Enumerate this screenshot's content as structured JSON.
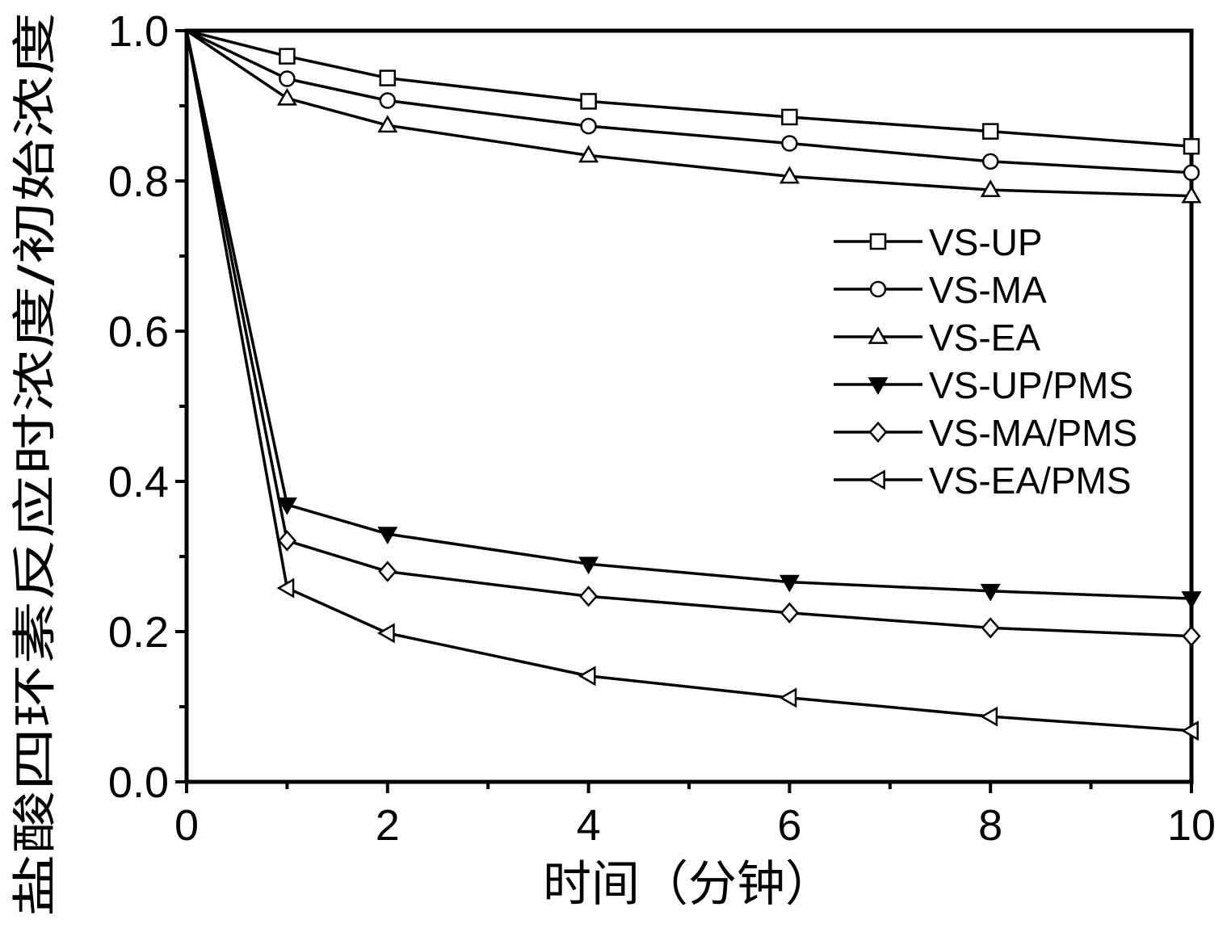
{
  "chart_data": {
    "type": "line",
    "title": "",
    "xlabel": "时间（分钟）",
    "ylabel": "盐酸四环素反应时浓度/初始浓度",
    "xlim": [
      0,
      10
    ],
    "ylim": [
      0.0,
      1.0
    ],
    "x_ticks": [
      0,
      2,
      4,
      6,
      8,
      10
    ],
    "x_tick_labels": [
      "0",
      "2",
      "4",
      "6",
      "8",
      "10"
    ],
    "y_ticks": [
      0.0,
      0.2,
      0.4,
      0.6,
      0.8,
      1.0
    ],
    "y_tick_labels": [
      "0.0",
      "0.2",
      "0.4",
      "0.6",
      "0.8",
      "1.0"
    ],
    "grid": false,
    "legend_position": "right, upper-middle",
    "x": [
      0,
      1,
      2,
      4,
      6,
      8,
      10
    ],
    "series": [
      {
        "name": "VS-UP",
        "marker": "square-open",
        "values": [
          1.0,
          0.966,
          0.937,
          0.906,
          0.885,
          0.866,
          0.846
        ]
      },
      {
        "name": "VS-MA",
        "marker": "circle-open",
        "values": [
          1.0,
          0.936,
          0.907,
          0.873,
          0.85,
          0.826,
          0.811
        ]
      },
      {
        "name": "VS-EA",
        "marker": "triangle-up-open",
        "values": [
          1.0,
          0.91,
          0.874,
          0.834,
          0.806,
          0.788,
          0.78
        ]
      },
      {
        "name": "VS-UP/PMS",
        "marker": "triangle-down-filled",
        "values": [
          1.0,
          0.369,
          0.33,
          0.29,
          0.266,
          0.254,
          0.244
        ]
      },
      {
        "name": "VS-MA/PMS",
        "marker": "diamond-open",
        "values": [
          1.0,
          0.321,
          0.28,
          0.247,
          0.225,
          0.205,
          0.194
        ]
      },
      {
        "name": "VS-EA/PMS",
        "marker": "triangle-left-open",
        "values": [
          1.0,
          0.258,
          0.198,
          0.141,
          0.112,
          0.087,
          0.068
        ]
      }
    ],
    "colors": {
      "line": "#000000",
      "background": "#ffffff"
    }
  }
}
